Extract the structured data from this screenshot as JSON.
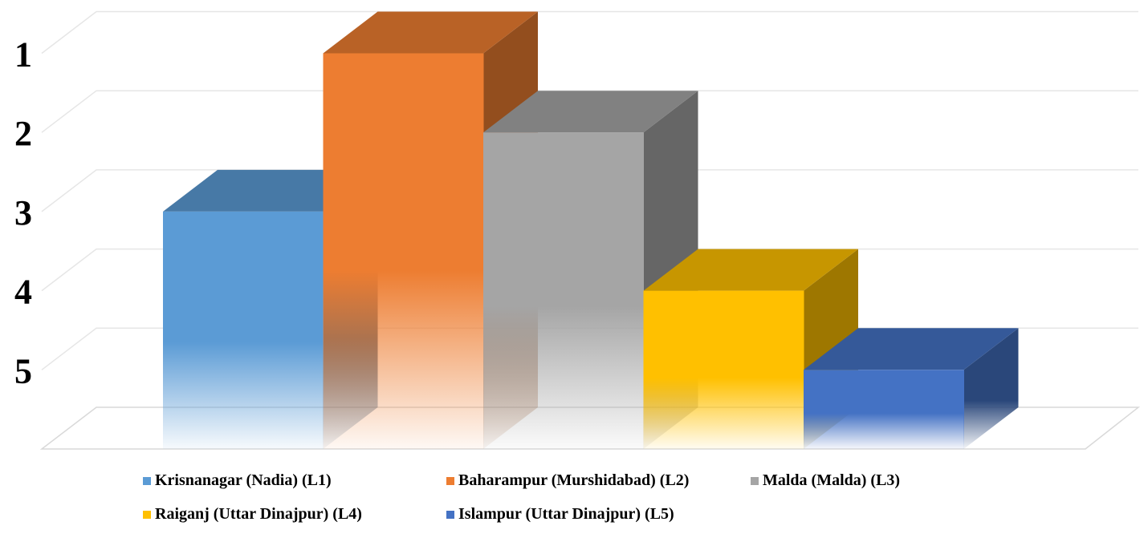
{
  "chart_data": {
    "type": "bar",
    "style": "3d-column",
    "categories": [
      "Krisnanagar (Nadia) (L1)",
      "Baharampur (Murshidabad) (L2)",
      "Malda (Malda) (L3)",
      "Raiganj (Uttar Dinajpur) (L4)",
      "Islampur (Uttar Dinajpur) (L5)"
    ],
    "values": [
      3,
      1,
      2,
      4,
      5
    ],
    "colors": [
      "#5b9bd5",
      "#ed7d31",
      "#a5a5a5",
      "#ffc000",
      "#4472c4"
    ],
    "y_ticks": [
      "1",
      "2",
      "3",
      "4",
      "5"
    ],
    "y_axis": "rank, 1 at top (tallest) to 5 near bottom",
    "grid": true,
    "legend_position": "bottom",
    "title": "",
    "xlabel": "",
    "ylabel": ""
  }
}
